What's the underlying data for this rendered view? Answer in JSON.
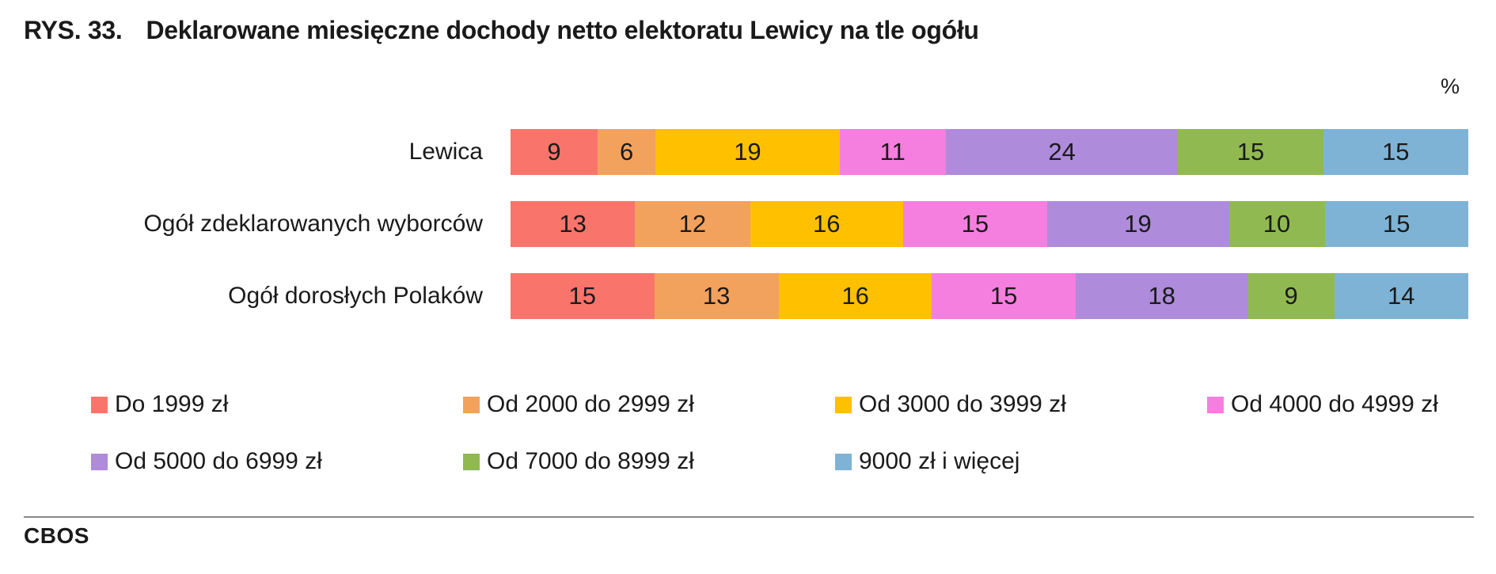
{
  "title": {
    "prefix": "RYS. 33.",
    "text": "Deklarowane miesięczne dochody netto elektoratu Lewicy na tle ogółu"
  },
  "unit_label": "%",
  "footer": {
    "brand": "CBOS"
  },
  "chart_data": {
    "type": "bar",
    "stacked": true,
    "orientation": "horizontal",
    "unit": "%",
    "title": "RYS. 33. Deklarowane miesięczne dochody netto elektoratu Lewicy na tle ogółu",
    "categories": [
      "Lewica",
      "Ogół zdeklarowanych wyborców",
      "Ogół dorosłych Polaków"
    ],
    "series": [
      {
        "name": "Do 1999 zł",
        "color": "#F9756C",
        "values": [
          9,
          13,
          15
        ]
      },
      {
        "name": "Od 2000 do 2999 zł",
        "color": "#F2A25D",
        "values": [
          6,
          12,
          13
        ]
      },
      {
        "name": "Od 3000 do 3999 zł",
        "color": "#FFC000",
        "values": [
          19,
          16,
          16
        ]
      },
      {
        "name": "Od 4000 do 4999 zł",
        "color": "#F57FDE",
        "values": [
          11,
          15,
          15
        ]
      },
      {
        "name": "Od 5000 do 6999 zł",
        "color": "#AE8BDB",
        "values": [
          24,
          19,
          18
        ]
      },
      {
        "name": "Od 7000 do 8999 zł",
        "color": "#90BA51",
        "values": [
          15,
          10,
          9
        ]
      },
      {
        "name": "9000 zł i więcej",
        "color": "#7FB3D5",
        "values": [
          15,
          15,
          14
        ]
      }
    ],
    "legend_position": "bottom",
    "xlim": [
      0,
      100
    ],
    "grid": false
  }
}
